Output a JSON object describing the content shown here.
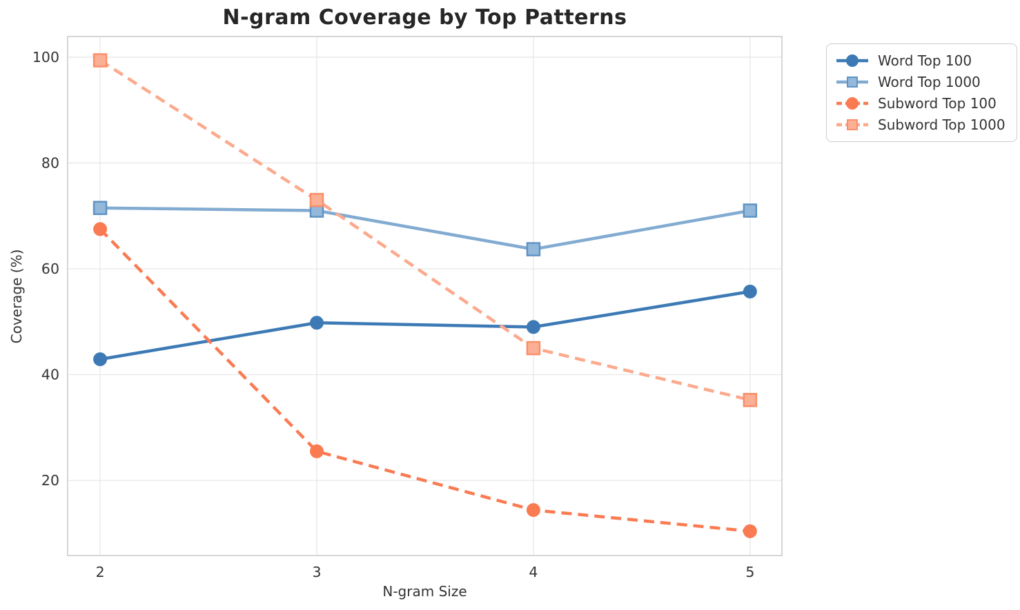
{
  "chart_data": {
    "type": "line",
    "title": "N-gram Coverage by Top Patterns",
    "xlabel": "N-gram Size",
    "ylabel": "Coverage (%)",
    "x": [
      2,
      3,
      4,
      5
    ],
    "xtick_labels": [
      "2",
      "3",
      "4",
      "5"
    ],
    "ytick_values": [
      20,
      40,
      60,
      80,
      100
    ],
    "ytick_labels": [
      "20",
      "40",
      "60",
      "80",
      "100"
    ],
    "xlim": [
      1.85,
      5.147
    ],
    "ylim": [
      5.8,
      103.9
    ],
    "grid": true,
    "legend_position": "outside-upper-right",
    "series": [
      {
        "name": "Word Top 100",
        "values": [
          42.9,
          49.8,
          49.0,
          55.7
        ],
        "color": "#3D7AB5",
        "marker": "circle",
        "marker_fill": "#3D7AB5",
        "marker_edge": "#3D7AB5",
        "line_style": "solid"
      },
      {
        "name": "Word Top 1000",
        "values": [
          71.5,
          71.0,
          63.7,
          71.0
        ],
        "color": "#82ABD1",
        "marker": "square",
        "marker_fill": "#93B8DA",
        "marker_edge": "#5E93C4",
        "line_style": "solid"
      },
      {
        "name": "Subword Top 100",
        "values": [
          67.5,
          25.5,
          14.4,
          10.4
        ],
        "color": "#FA7B52",
        "marker": "circle",
        "marker_fill": "#FA7B52",
        "marker_edge": "#FA7B52",
        "line_style": "dashed"
      },
      {
        "name": "Subword Top 1000",
        "values": [
          99.4,
          73.0,
          45.0,
          35.2
        ],
        "color": "#FCA98C",
        "marker": "square",
        "marker_fill": "#FBB096",
        "marker_edge": "#FA8E69",
        "line_style": "dashed"
      }
    ],
    "colors": {
      "background": "#FFFFFF",
      "grid": "#E7E7E7",
      "spine": "#CCCCCC",
      "title": "#262626",
      "tick_label": "#333333",
      "legend_border": "#CCCCCC"
    }
  }
}
